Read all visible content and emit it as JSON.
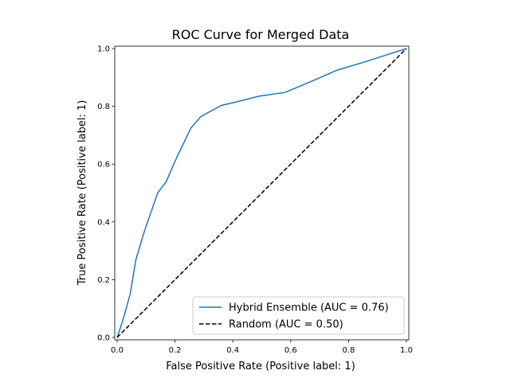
{
  "chart_data": {
    "type": "line",
    "title": "ROC Curve for Merged Data",
    "xlabel": "False Positive Rate (Positive label: 1)",
    "ylabel": "True Positive Rate (Positive label: 1)",
    "xlim": [
      0,
      1
    ],
    "ylim": [
      0,
      1
    ],
    "x_ticks": [
      "0.0",
      "0.2",
      "0.4",
      "0.6",
      "0.8",
      "1.0"
    ],
    "y_ticks": [
      "0.0",
      "0.2",
      "0.4",
      "0.6",
      "0.8",
      "1.0"
    ],
    "grid": false,
    "legend_position": "lower-right",
    "series": [
      {
        "name": "Hybrid Ensemble (AUC = 0.76)",
        "color": "#1f77b4",
        "line_style": "solid",
        "x": [
          0.0,
          0.02,
          0.045,
          0.065,
          0.095,
          0.14,
          0.17,
          0.2,
          0.255,
          0.29,
          0.36,
          0.44,
          0.49,
          0.58,
          0.68,
          0.76,
          0.86,
          1.0
        ],
        "y": [
          0.0,
          0.06,
          0.15,
          0.27,
          0.37,
          0.5,
          0.54,
          0.61,
          0.725,
          0.765,
          0.803,
          0.822,
          0.835,
          0.848,
          0.89,
          0.925,
          0.955,
          1.0
        ]
      },
      {
        "name": "Random (AUC = 0.50)",
        "color": "#000000",
        "line_style": "dashed",
        "x": [
          0.0,
          1.0
        ],
        "y": [
          0.0,
          1.0
        ]
      }
    ]
  }
}
